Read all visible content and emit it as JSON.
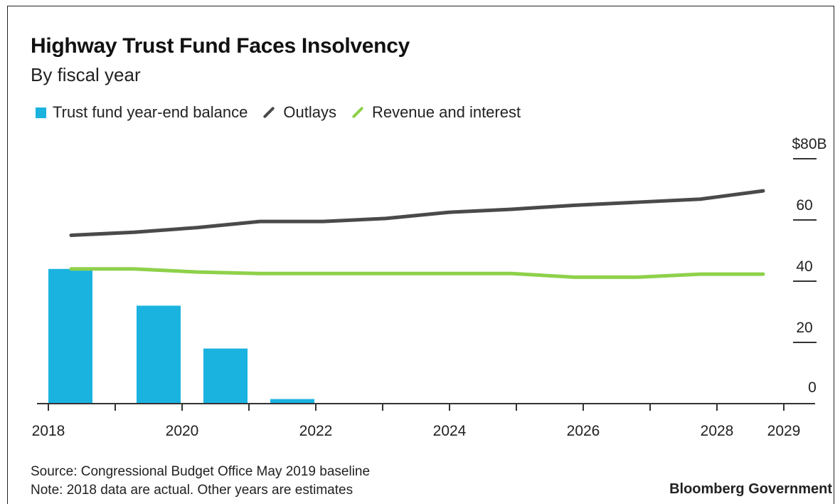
{
  "title": "Highway Trust Fund Faces Insolvency",
  "subtitle": "By fiscal year",
  "legend": [
    {
      "label": "Trust fund year-end balance",
      "color": "#1ab3e0",
      "kind": "box"
    },
    {
      "label": "Outlays",
      "color": "#4a4a4a",
      "kind": "line"
    },
    {
      "label": "Revenue and interest",
      "color": "#8ed14a",
      "kind": "line"
    }
  ],
  "chart_data": {
    "type": "bar",
    "title": "Highway Trust Fund Faces Insolvency",
    "subtitle": "By fiscal year",
    "x_ticks": [
      "2018",
      "2020",
      "2022",
      "2024",
      "2026",
      "2028",
      "2029"
    ],
    "y_ticks": [
      "$80B",
      "60",
      "40",
      "20",
      "0"
    ],
    "ylim": [
      0,
      80
    ],
    "xlim": [
      2018,
      2029
    ],
    "grid": false,
    "legend_position": "top",
    "colors": {
      "balance": "#1ab3e0",
      "outlays": "#4a4a4a",
      "revenue": "#8ed14a"
    },
    "bars": {
      "name": "Trust fund year-end balance",
      "x": [
        2018,
        2019,
        2020,
        2021
      ],
      "values": [
        44,
        32,
        18,
        1.5
      ]
    },
    "series": [
      {
        "name": "Outlays",
        "x": [
          2018,
          2019,
          2020,
          2021,
          2022,
          2023,
          2024,
          2025,
          2026,
          2027,
          2028,
          2029
        ],
        "values": [
          55,
          56,
          57.5,
          59.5,
          59.5,
          60.5,
          62.5,
          63.5,
          64.8,
          65.8,
          66.8,
          69.5
        ]
      },
      {
        "name": "Revenue and interest",
        "x": [
          2018,
          2019,
          2020,
          2021,
          2022,
          2023,
          2024,
          2025,
          2026,
          2027,
          2028,
          2029
        ],
        "values": [
          44,
          44,
          43,
          42.5,
          42.5,
          42.5,
          42.5,
          42.5,
          41.3,
          41.3,
          42.3,
          42.3
        ]
      }
    ]
  },
  "footer": {
    "source": "Source: Congressional Budget Office May 2019 baseline",
    "note": "Note: 2018 data are actual. Other years are estimates",
    "brand": "Bloomberg Government"
  }
}
